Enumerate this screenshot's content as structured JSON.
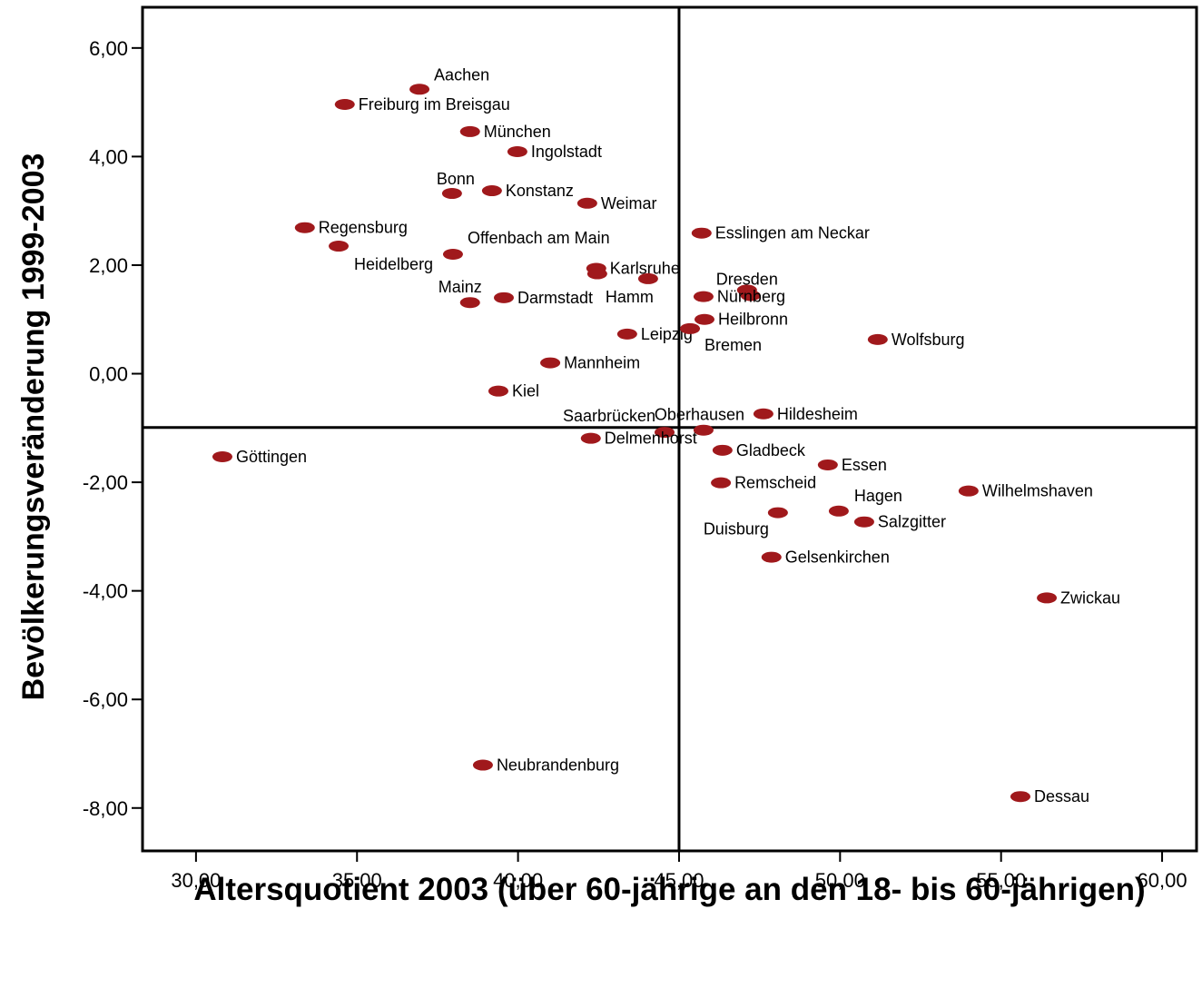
{
  "chart_data": {
    "type": "scatter",
    "x_label": "Altersquotient 2003 (über 60-jährige an den 18- bis 60-jährigen)",
    "y_label": "Bevölkerungsveränderung  1999-2003",
    "color": "#a0191c",
    "labels": [
      "Aachen",
      "Freiburg im Breisgau",
      "München",
      "Ingolstadt",
      "Bonn",
      "Konstanz",
      "Weimar",
      "Regensburg",
      "Heidelberg",
      "Offenbach am Main",
      "Esslingen am Neckar",
      "Karlsruhe",
      null,
      "Hamm",
      "Mainz",
      "Darmstadt",
      "Dresden",
      null,
      "Nürnberg",
      "Heilbronn",
      "Leipzig",
      "Bremen",
      "Wolfsburg",
      "Mannheim",
      "Kiel",
      "Hildesheim",
      "Saarbrücken",
      "Oberhausen",
      "Delmenhorst",
      "Göttingen",
      "Gladbeck",
      "Essen",
      "Remscheid",
      "Wilhelmshaven",
      "Hagen",
      "Duisburg",
      "Salzgitter",
      "Gelsenkirchen",
      "Zwickau",
      "Neubrandenburg",
      "Dessau"
    ],
    "x": [
      36.94,
      34.62,
      38.51,
      39.98,
      37.95,
      39.19,
      42.15,
      33.38,
      34.43,
      37.98,
      45.7,
      42.43,
      42.46,
      44.04,
      38.51,
      39.56,
      47.11,
      47.22,
      45.76,
      45.79,
      43.39,
      45.34,
      51.17,
      41.0,
      39.39,
      47.62,
      44.55,
      45.76,
      42.26,
      30.82,
      46.35,
      49.62,
      46.3,
      53.99,
      49.96,
      48.07,
      50.75,
      47.87,
      56.42,
      38.91,
      55.6
    ],
    "values": [
      5.24,
      4.96,
      4.46,
      4.09,
      3.32,
      3.37,
      3.14,
      2.69,
      2.35,
      2.2,
      2.59,
      1.94,
      1.84,
      1.75,
      1.31,
      1.4,
      1.54,
      1.44,
      1.42,
      1.0,
      0.73,
      0.83,
      0.63,
      0.2,
      -0.32,
      -0.74,
      -1.08,
      -1.04,
      -1.19,
      -1.53,
      -1.41,
      -1.68,
      -2.01,
      -2.16,
      -2.53,
      -2.56,
      -2.73,
      -3.38,
      -4.13,
      -7.21,
      -7.79
    ],
    "xlim": [
      28.34,
      61.07
    ],
    "ylim": [
      -8.79,
      6.75
    ],
    "x_reference": 45,
    "y_reference": -0.99,
    "xticks": [
      {
        "value": 30,
        "label": "30,00"
      },
      {
        "value": 35,
        "label": "35,00"
      },
      {
        "value": 40,
        "label": "40,00"
      },
      {
        "value": 45,
        "label": "45,00"
      },
      {
        "value": 50,
        "label": "50,00"
      },
      {
        "value": 55,
        "label": "55,00"
      },
      {
        "value": 60,
        "label": "60,00"
      }
    ],
    "yticks": [
      {
        "value": 6,
        "label": "6,00"
      },
      {
        "value": 4,
        "label": "4,00"
      },
      {
        "value": 2,
        "label": "2,00"
      },
      {
        "value": 0,
        "label": "0,00"
      },
      {
        "value": -2,
        "label": "-2,00"
      },
      {
        "value": -4,
        "label": "-4,00"
      },
      {
        "value": -6,
        "label": "-6,00"
      },
      {
        "value": -8,
        "label": "-8,00"
      }
    ]
  }
}
